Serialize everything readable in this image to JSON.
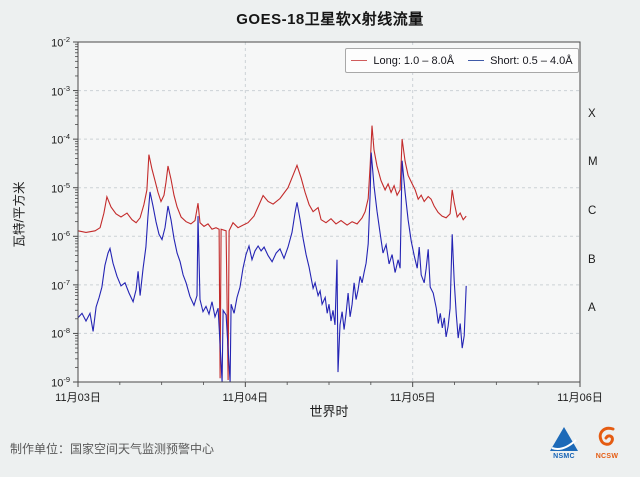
{
  "chart_data": {
    "type": "line",
    "title": "GOES-18卫星软X射线流量",
    "xlabel": "世界时",
    "ylabel": "瓦特/平方米",
    "y_scale": "log",
    "y_base": "10",
    "y_tick_exponents": [
      "-2",
      "-3",
      "-4",
      "-5",
      "-6",
      "-7",
      "-8",
      "-9"
    ],
    "ylim_exponents": [
      -2,
      -9
    ],
    "x_range_days": [
      0,
      3
    ],
    "x_ticks": [
      {
        "label": "11月03日",
        "t": 0
      },
      {
        "label": "11月04日",
        "t": 1
      },
      {
        "label": "11月05日",
        "t": 2
      },
      {
        "label": "11月06日",
        "t": 3
      }
    ],
    "grid": "dashed",
    "flare_class_labels": [
      {
        "label": "X",
        "log_center": -3.5
      },
      {
        "label": "M",
        "log_center": -4.5
      },
      {
        "label": "C",
        "log_center": -5.5
      },
      {
        "label": "B",
        "log_center": -6.5
      },
      {
        "label": "A",
        "log_center": -7.5
      }
    ],
    "series": [
      {
        "name": "Long: 1.0 – 8.0Å",
        "color": "#c32b2b",
        "marker_color": "#d05c5c",
        "points": [
          [
            0.0,
            1.3e-06
          ],
          [
            0.048,
            1.2e-06
          ],
          [
            0.102,
            1.3e-06
          ],
          [
            0.132,
            1.5e-06
          ],
          [
            0.155,
            3e-06
          ],
          [
            0.173,
            6.5e-06
          ],
          [
            0.197,
            4e-06
          ],
          [
            0.227,
            2.9e-06
          ],
          [
            0.257,
            2.5e-06
          ],
          [
            0.293,
            3e-06
          ],
          [
            0.323,
            2.2e-06
          ],
          [
            0.347,
            1.9e-06
          ],
          [
            0.371,
            2.4e-06
          ],
          [
            0.394,
            4.5e-06
          ],
          [
            0.412,
            9e-06
          ],
          [
            0.424,
            4.8e-05
          ],
          [
            0.442,
            2.4e-05
          ],
          [
            0.46,
            1.4e-05
          ],
          [
            0.478,
            8e-06
          ],
          [
            0.496,
            5.2e-06
          ],
          [
            0.514,
            7e-06
          ],
          [
            0.526,
            1.3e-05
          ],
          [
            0.538,
            2.8e-05
          ],
          [
            0.556,
            1.5e-05
          ],
          [
            0.574,
            7e-06
          ],
          [
            0.592,
            4e-06
          ],
          [
            0.616,
            2.5e-06
          ],
          [
            0.646,
            2e-06
          ],
          [
            0.675,
            1.8e-06
          ],
          [
            0.699,
            2.1e-06
          ],
          [
            0.717,
            4.8e-06
          ],
          [
            0.729,
            1.9e-06
          ],
          [
            0.753,
            1.6e-06
          ],
          [
            0.777,
            1.8e-06
          ],
          [
            0.801,
            1.4e-06
          ],
          [
            0.825,
            1.5e-06
          ],
          [
            0.843,
            1.4e-06
          ],
          [
            0.849,
            1.2e-09
          ],
          [
            0.855,
            1.4e-06
          ],
          [
            0.885,
            1.3e-06
          ],
          [
            0.897,
            1.1e-09
          ],
          [
            0.903,
            1.3e-06
          ],
          [
            0.926,
            1.9e-06
          ],
          [
            0.956,
            1.5e-06
          ],
          [
            0.986,
            1.7e-06
          ],
          [
            1.016,
            1.9e-06
          ],
          [
            1.052,
            2.6e-06
          ],
          [
            1.082,
            4.5e-06
          ],
          [
            1.106,
            6.9e-06
          ],
          [
            1.136,
            5.2e-06
          ],
          [
            1.166,
            4.6e-06
          ],
          [
            1.207,
            6e-06
          ],
          [
            1.255,
            1e-05
          ],
          [
            1.285,
            1.8e-05
          ],
          [
            1.309,
            2.9e-05
          ],
          [
            1.333,
            1.6e-05
          ],
          [
            1.357,
            8e-06
          ],
          [
            1.381,
            4.5e-06
          ],
          [
            1.405,
            3.2e-06
          ],
          [
            1.435,
            3.9e-06
          ],
          [
            1.453,
            2.2e-06
          ],
          [
            1.482,
            1.9e-06
          ],
          [
            1.512,
            2.3e-06
          ],
          [
            1.542,
            1.8e-06
          ],
          [
            1.572,
            2.1e-06
          ],
          [
            1.608,
            1.7e-06
          ],
          [
            1.638,
            2e-06
          ],
          [
            1.668,
            1.8e-06
          ],
          [
            1.698,
            2.4e-06
          ],
          [
            1.716,
            3.2e-06
          ],
          [
            1.734,
            6e-06
          ],
          [
            1.746,
            3e-05
          ],
          [
            1.757,
            0.00019
          ],
          [
            1.769,
            6e-05
          ],
          [
            1.787,
            2.8e-05
          ],
          [
            1.811,
            1.4e-05
          ],
          [
            1.835,
            9e-06
          ],
          [
            1.853,
            1.2e-05
          ],
          [
            1.871,
            8e-06
          ],
          [
            1.889,
            1.1e-05
          ],
          [
            1.907,
            7e-06
          ],
          [
            1.925,
            9e-06
          ],
          [
            1.937,
            0.0001
          ],
          [
            1.955,
            3.5e-05
          ],
          [
            1.973,
            1.8e-05
          ],
          [
            1.997,
            1.2e-05
          ],
          [
            2.015,
            9e-06
          ],
          [
            2.033,
            5.8e-06
          ],
          [
            2.051,
            7e-06
          ],
          [
            2.069,
            5.2e-06
          ],
          [
            2.093,
            6.6e-06
          ],
          [
            2.11,
            5.8e-06
          ],
          [
            2.128,
            4.2e-06
          ],
          [
            2.152,
            3.1e-06
          ],
          [
            2.176,
            2.6e-06
          ],
          [
            2.2,
            2.4e-06
          ],
          [
            2.224,
            2.9e-06
          ],
          [
            2.236,
            9e-06
          ],
          [
            2.248,
            5e-06
          ],
          [
            2.266,
            2.5e-06
          ],
          [
            2.284,
            3e-06
          ],
          [
            2.302,
            2.2e-06
          ],
          [
            2.32,
            2.6e-06
          ]
        ]
      },
      {
        "name": "Short: 0.5 – 4.0Å",
        "color": "#2424b4",
        "marker_color": "#3f5aa8",
        "points": [
          [
            0.0,
            2.1e-08
          ],
          [
            0.024,
            2.6e-08
          ],
          [
            0.048,
            1.8e-08
          ],
          [
            0.072,
            2.6e-08
          ],
          [
            0.09,
            1.1e-08
          ],
          [
            0.108,
            3.5e-08
          ],
          [
            0.126,
            5.5e-08
          ],
          [
            0.143,
            9e-08
          ],
          [
            0.161,
            2.5e-07
          ],
          [
            0.179,
            4.5e-07
          ],
          [
            0.191,
            5.6e-07
          ],
          [
            0.209,
            2.8e-07
          ],
          [
            0.233,
            1.5e-07
          ],
          [
            0.257,
            9.5e-08
          ],
          [
            0.281,
            1.1e-07
          ],
          [
            0.305,
            6.8e-08
          ],
          [
            0.329,
            4.5e-08
          ],
          [
            0.347,
            8e-08
          ],
          [
            0.359,
            1.9e-07
          ],
          [
            0.371,
            6e-08
          ],
          [
            0.389,
            2.2e-07
          ],
          [
            0.406,
            6e-07
          ],
          [
            0.418,
            2.5e-06
          ],
          [
            0.43,
            8.2e-06
          ],
          [
            0.448,
            4.2e-06
          ],
          [
            0.466,
            2e-06
          ],
          [
            0.484,
            1.1e-06
          ],
          [
            0.502,
            8.6e-07
          ],
          [
            0.52,
            1.5e-06
          ],
          [
            0.538,
            4.2e-06
          ],
          [
            0.556,
            2.2e-06
          ],
          [
            0.574,
            9e-07
          ],
          [
            0.592,
            4.5e-07
          ],
          [
            0.61,
            3e-07
          ],
          [
            0.628,
            1.6e-07
          ],
          [
            0.646,
            1.1e-07
          ],
          [
            0.669,
            5.8e-08
          ],
          [
            0.693,
            3.8e-08
          ],
          [
            0.711,
            6e-08
          ],
          [
            0.717,
            2.6e-06
          ],
          [
            0.729,
            5e-08
          ],
          [
            0.747,
            2.8e-08
          ],
          [
            0.765,
            3.6e-08
          ],
          [
            0.783,
            2.5e-08
          ],
          [
            0.801,
            4.5e-08
          ],
          [
            0.819,
            2.2e-08
          ],
          [
            0.837,
            3.3e-08
          ],
          [
            0.861,
            1e-09
          ],
          [
            0.867,
            3e-08
          ],
          [
            0.885,
            2.4e-08
          ],
          [
            0.909,
            1e-09
          ],
          [
            0.915,
            4e-08
          ],
          [
            0.933,
            2.6e-08
          ],
          [
            0.95,
            5.5e-08
          ],
          [
            0.968,
            9e-08
          ],
          [
            0.986,
            2.2e-07
          ],
          [
            1.004,
            4.2e-07
          ],
          [
            1.022,
            6.3e-07
          ],
          [
            1.04,
            3.3e-07
          ],
          [
            1.058,
            5e-07
          ],
          [
            1.076,
            6.3e-07
          ],
          [
            1.094,
            5e-07
          ],
          [
            1.112,
            6e-07
          ],
          [
            1.136,
            4e-07
          ],
          [
            1.16,
            3e-07
          ],
          [
            1.184,
            4.5e-07
          ],
          [
            1.207,
            5.5e-07
          ],
          [
            1.231,
            3.5e-07
          ],
          [
            1.255,
            6e-07
          ],
          [
            1.279,
            1.2e-06
          ],
          [
            1.297,
            3e-06
          ],
          [
            1.309,
            5e-06
          ],
          [
            1.327,
            2.2e-06
          ],
          [
            1.345,
            9e-07
          ],
          [
            1.363,
            4.2e-07
          ],
          [
            1.381,
            2.3e-07
          ],
          [
            1.393,
            1.4e-07
          ],
          [
            1.405,
            8.5e-08
          ],
          [
            1.417,
            1.1e-07
          ],
          [
            1.435,
            6e-08
          ],
          [
            1.447,
            7.5e-08
          ],
          [
            1.459,
            4e-08
          ],
          [
            1.477,
            5.5e-08
          ],
          [
            1.489,
            2.6e-08
          ],
          [
            1.5,
            4e-08
          ],
          [
            1.512,
            1.8e-08
          ],
          [
            1.524,
            3e-08
          ],
          [
            1.536,
            1.5e-08
          ],
          [
            1.548,
            3.3e-07
          ],
          [
            1.554,
            1.6e-09
          ],
          [
            1.566,
            1.5e-08
          ],
          [
            1.578,
            2.8e-08
          ],
          [
            1.59,
            1.2e-08
          ],
          [
            1.602,
            2.6e-08
          ],
          [
            1.614,
            6.8e-08
          ],
          [
            1.626,
            2.2e-08
          ],
          [
            1.638,
            4e-08
          ],
          [
            1.65,
            1.1e-07
          ],
          [
            1.662,
            5e-08
          ],
          [
            1.674,
            8e-08
          ],
          [
            1.686,
            1.5e-07
          ],
          [
            1.698,
            1.1e-07
          ],
          [
            1.71,
            1.8e-07
          ],
          [
            1.722,
            2.8e-07
          ],
          [
            1.734,
            7e-07
          ],
          [
            1.746,
            8e-06
          ],
          [
            1.752,
            5.3e-05
          ],
          [
            1.769,
            1.1e-05
          ],
          [
            1.787,
            3.3e-06
          ],
          [
            1.805,
            1.2e-06
          ],
          [
            1.823,
            4.5e-07
          ],
          [
            1.841,
            6.7e-07
          ],
          [
            1.859,
            2.7e-07
          ],
          [
            1.877,
            4.2e-07
          ],
          [
            1.895,
            1.8e-07
          ],
          [
            1.913,
            3.3e-07
          ],
          [
            1.925,
            2.2e-07
          ],
          [
            1.937,
            3.6e-05
          ],
          [
            1.955,
            8e-06
          ],
          [
            1.973,
            2.2e-06
          ],
          [
            1.991,
            8e-07
          ],
          [
            2.009,
            4e-07
          ],
          [
            2.027,
            2.2e-07
          ],
          [
            2.039,
            6e-07
          ],
          [
            2.051,
            1.6e-07
          ],
          [
            2.069,
            1.1e-07
          ],
          [
            2.081,
            2.2e-07
          ],
          [
            2.093,
            5.4e-07
          ],
          [
            2.105,
            9e-08
          ],
          [
            2.123,
            6.8e-08
          ],
          [
            2.141,
            3.3e-08
          ],
          [
            2.153,
            1.6e-08
          ],
          [
            2.165,
            2.6e-08
          ],
          [
            2.177,
            1.3e-08
          ],
          [
            2.189,
            2.1e-08
          ],
          [
            2.2,
            8.5e-09
          ],
          [
            2.212,
            1.4e-08
          ],
          [
            2.224,
            3.3e-08
          ],
          [
            2.236,
            1.1e-06
          ],
          [
            2.248,
            1.2e-07
          ],
          [
            2.26,
            2.6e-08
          ],
          [
            2.272,
            8e-09
          ],
          [
            2.284,
            1.6e-08
          ],
          [
            2.296,
            5e-09
          ],
          [
            2.308,
            9e-09
          ],
          [
            2.32,
            9.5e-08
          ]
        ]
      }
    ]
  },
  "footer": {
    "credit": "制作单位：国家空间天气监测预警中心",
    "logos": [
      {
        "text": "NSMC",
        "color": "#1663b5"
      },
      {
        "text": "NCSW",
        "color": "#e55c12"
      }
    ]
  }
}
